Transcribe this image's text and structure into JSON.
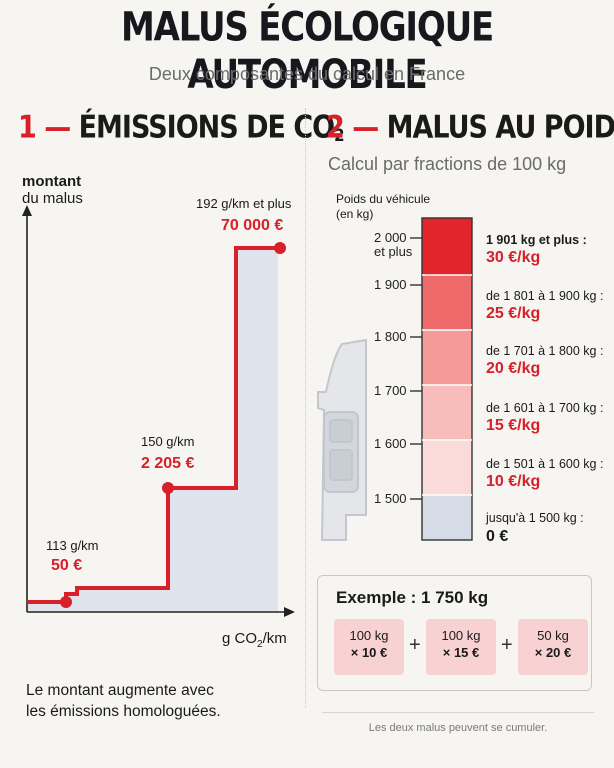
{
  "header": {
    "title": "MALUS ÉCOLOGIQUE AUTOMOBILE",
    "subtitle": "Deux composantes du calcul en France"
  },
  "section1": {
    "number": "1",
    "dash": "—",
    "title_main": "ÉMISSIONS DE CO",
    "title_sub": "2",
    "y_label": [
      "montant",
      "du malus"
    ],
    "x_label_main": "g CO",
    "x_label_sub": "2",
    "x_label_end": "/km",
    "caption": [
      "Le montant augmente avec",
      "les émissions homologuées."
    ],
    "steps": [
      {
        "threshold": "113 g/km",
        "amount": "50 €"
      },
      {
        "threshold": "150 g/km",
        "amount": "2 205 €"
      },
      {
        "threshold": "192 g/km et plus",
        "amount": "70 000 €"
      }
    ]
  },
  "section2": {
    "number": "2",
    "dash": "—",
    "title": "MALUS AU POIDS",
    "subtitle": "Calcul par fractions de 100 kg",
    "weight_label": [
      "Poids du véhicule",
      "(en kg)"
    ],
    "ticks": [
      [
        "2 000",
        "et plus"
      ],
      [
        "1 900"
      ],
      [
        "1 800"
      ],
      [
        "1 700"
      ],
      [
        "1 600"
      ],
      [
        "1 500"
      ]
    ],
    "brackets": [
      {
        "range": "1 901 kg et plus :",
        "rate": "30 €/kg",
        "color": "#e2242d"
      },
      {
        "range": "de 1 801 à 1 900 kg :",
        "rate": "25 €/kg",
        "color": "#ef6a6a"
      },
      {
        "range": "de 1 701 à 1 800 kg :",
        "rate": "20 €/kg",
        "color": "#f59a99"
      },
      {
        "range": "de 1 601 à 1 700 kg :",
        "rate": "15 €/kg",
        "color": "#f8bdbb"
      },
      {
        "range": "de 1 501 à 1 600 kg :",
        "rate": "10 €/kg",
        "color": "#fadbd9"
      },
      {
        "range": "jusqu'à 1 500 kg :",
        "rate": "0 €",
        "color": "#d5dce5"
      }
    ],
    "example": {
      "title": "Exemple : 1 750 kg",
      "parts": [
        {
          "weight": "100 kg",
          "rate": "× 10 €"
        },
        {
          "weight": "100 kg",
          "rate": "× 15 €"
        },
        {
          "weight": "50 kg",
          "rate": "× 20 €"
        }
      ],
      "operator": "+"
    },
    "footer": "Les deux malus peuvent se cumuler."
  },
  "colors": {
    "accent": "#d8202a",
    "dark": "#16181d",
    "area": "#dfe4ec"
  }
}
